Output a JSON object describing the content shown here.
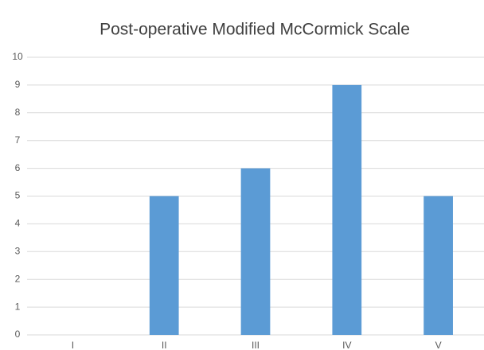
{
  "chart_data": {
    "type": "bar",
    "title": "Post-operative Modified McCormick Scale",
    "categories": [
      "I",
      "II",
      "III",
      "IV",
      "V"
    ],
    "values": [
      0,
      5,
      6,
      9,
      5
    ],
    "color": "#5b9bd5",
    "ylim": [
      0,
      10
    ],
    "yticks": [
      0,
      1,
      2,
      3,
      4,
      5,
      6,
      7,
      8,
      9,
      10
    ],
    "grid": true
  }
}
